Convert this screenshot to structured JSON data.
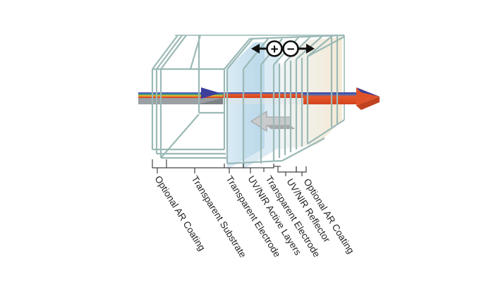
{
  "diagram": {
    "polarity_symbols": {
      "plus": "+",
      "minus": "−"
    },
    "layers": [
      {
        "id": "ar-front",
        "label": "Optional AR Coating"
      },
      {
        "id": "substrate",
        "label": "Transparent Substrate"
      },
      {
        "id": "electrode-front",
        "label": "Transparent Electrode"
      },
      {
        "id": "active",
        "label": "UV/NIR Active Layers"
      },
      {
        "id": "electrode-back",
        "label": "Transparent Electrode"
      },
      {
        "id": "reflector",
        "label": "UV/NIR Reflector"
      },
      {
        "id": "ar-back",
        "label": "Optional AR Coating"
      }
    ],
    "colors": {
      "glass_edge": "#9bb9b6",
      "active_tint": "#bcd9ea",
      "rear_tint": "#f0e4cf",
      "incoming_light": "#9aa0a3",
      "transmitted_light": "#e0532a",
      "reflected_light": "#c8cacb"
    }
  }
}
